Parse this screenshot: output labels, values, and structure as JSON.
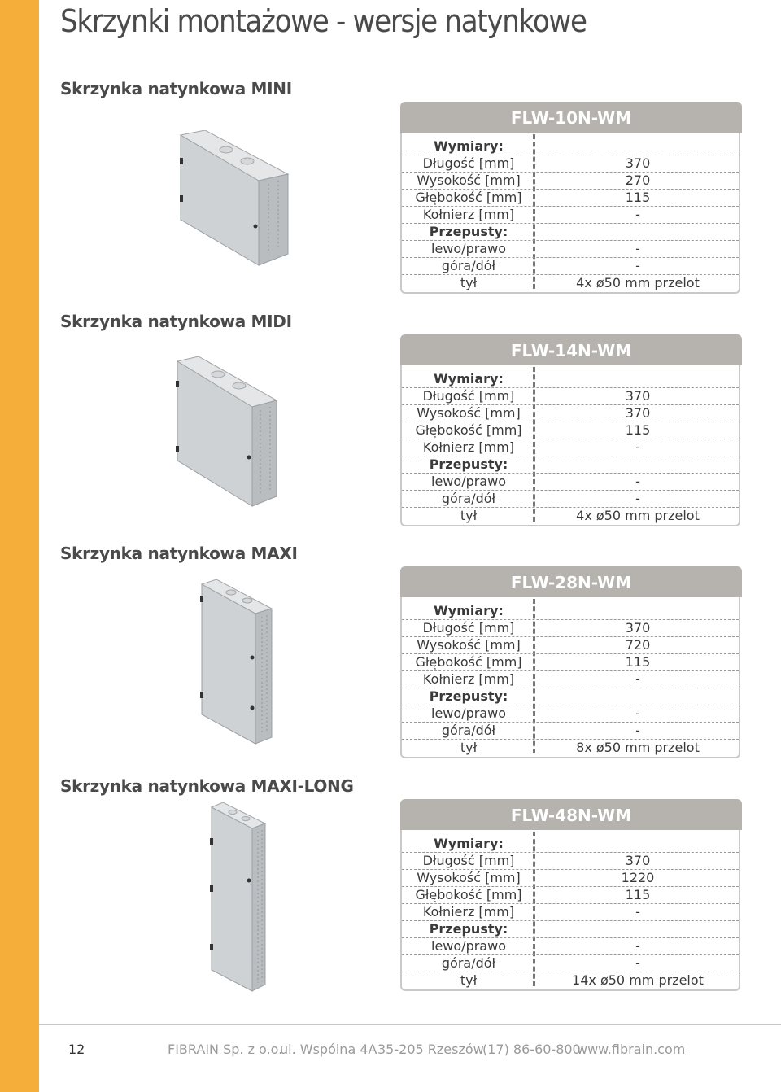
{
  "page": {
    "title": "Skrzynki montażowe - wersje natynkowe",
    "number": "12",
    "accent_color": "#f6ae3b"
  },
  "products": [
    {
      "section_title": "Skrzynka natynkowa MINI",
      "model": "FLW-10N-WM",
      "rows": [
        {
          "label": "Wymiary:",
          "value": "",
          "bold": true
        },
        {
          "label": "Długość [mm]",
          "value": "370"
        },
        {
          "label": "Wysokość [mm]",
          "value": "270"
        },
        {
          "label": "Głębokość [mm]",
          "value": "115"
        },
        {
          "label": "Kołnierz [mm]",
          "value": "-"
        },
        {
          "label": "Przepusty:",
          "value": "",
          "bold": true
        },
        {
          "label": "lewo/prawo",
          "value": "-"
        },
        {
          "label": "góra/dół",
          "value": "-"
        },
        {
          "label": "tył",
          "value": "4x ø50 mm przelot"
        }
      ]
    },
    {
      "section_title": "Skrzynka natynkowa MIDI",
      "model": "FLW-14N-WM",
      "rows": [
        {
          "label": "Wymiary:",
          "value": "",
          "bold": true
        },
        {
          "label": "Długość [mm]",
          "value": "370"
        },
        {
          "label": "Wysokość [mm]",
          "value": "370"
        },
        {
          "label": "Głębokość [mm]",
          "value": "115"
        },
        {
          "label": "Kołnierz [mm]",
          "value": "-"
        },
        {
          "label": "Przepusty:",
          "value": "",
          "bold": true
        },
        {
          "label": "lewo/prawo",
          "value": "-"
        },
        {
          "label": "góra/dół",
          "value": "-"
        },
        {
          "label": "tył",
          "value": "4x ø50 mm przelot"
        }
      ]
    },
    {
      "section_title": "Skrzynka natynkowa MAXI",
      "model": "FLW-28N-WM",
      "rows": [
        {
          "label": "Wymiary:",
          "value": "",
          "bold": true
        },
        {
          "label": "Długość [mm]",
          "value": "370"
        },
        {
          "label": "Wysokość [mm]",
          "value": "720"
        },
        {
          "label": "Głębokość [mm]",
          "value": "115"
        },
        {
          "label": "Kołnierz [mm]",
          "value": "-"
        },
        {
          "label": "Przepusty:",
          "value": "",
          "bold": true
        },
        {
          "label": "lewo/prawo",
          "value": "-"
        },
        {
          "label": "góra/dół",
          "value": "-"
        },
        {
          "label": "tył",
          "value": "8x ø50 mm przelot"
        }
      ]
    },
    {
      "section_title": "Skrzynka natynkowa MAXI-LONG",
      "model": "FLW-48N-WM",
      "rows": [
        {
          "label": "Wymiary:",
          "value": "",
          "bold": true
        },
        {
          "label": "Długość [mm]",
          "value": "370"
        },
        {
          "label": "Wysokość [mm]",
          "value": "1220"
        },
        {
          "label": "Głębokość [mm]",
          "value": "115"
        },
        {
          "label": "Kołnierz [mm]",
          "value": "-"
        },
        {
          "label": "Przepusty:",
          "value": "",
          "bold": true
        },
        {
          "label": "lewo/prawo",
          "value": "-"
        },
        {
          "label": "góra/dół",
          "value": "-"
        },
        {
          "label": "tył",
          "value": "14x ø50 mm przelot"
        }
      ]
    }
  ],
  "footer": {
    "company": "FIBRAIN Sp. z o.o.",
    "address": "ul. Wspólna 4A",
    "city": "35-205 Rzeszów",
    "phone": "(17) 86-60-800",
    "website": "www.fibrain.com"
  }
}
